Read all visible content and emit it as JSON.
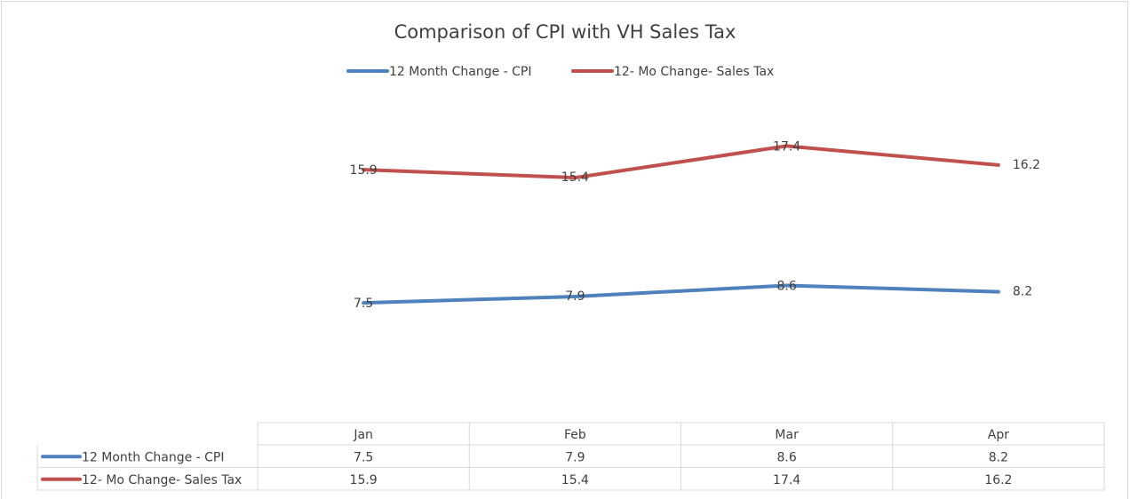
{
  "chart_data": {
    "type": "line",
    "title": "Comparison of CPI with VH Sales Tax",
    "categories": [
      "Jan",
      "Feb",
      "Mar",
      "Apr"
    ],
    "series": [
      {
        "name": "12 Month Change - CPI",
        "color": "#4f81bd",
        "values": [
          7.5,
          7.9,
          8.6,
          8.2
        ]
      },
      {
        "name": "12- Mo Change- Sales Tax",
        "color": "#c0504d",
        "values": [
          15.9,
          15.4,
          17.4,
          16.2
        ]
      }
    ],
    "ylim": [
      0,
      20
    ],
    "legend": "top",
    "data_table": true
  }
}
